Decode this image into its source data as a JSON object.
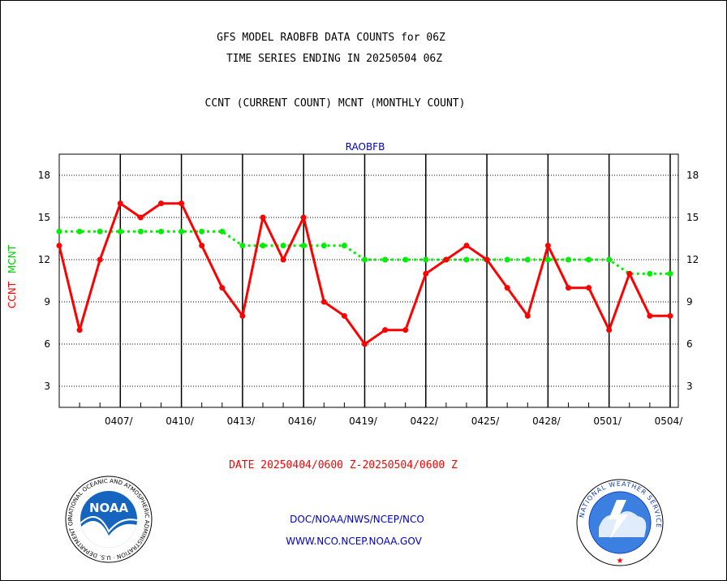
{
  "header": {
    "title_line1": "GFS MODEL RAOBFB DATA COUNTS for 06Z",
    "title_line2": "TIME SERIES ENDING IN 20250504 06Z",
    "subtitle": "CCNT (CURRENT COUNT) MCNT (MONTHLY COUNT)"
  },
  "footer": {
    "date_range": "DATE 20250404/0600 Z-20250504/0600 Z",
    "org_line": "DOC/NOAA/NWS/NCEP/NCO",
    "url_line": "WWW.NCO.NCEP.NOAA.GOV"
  },
  "logos": {
    "noaa_text": "NOAA",
    "noaa_ring_text": "NATIONAL OCEANIC AND ATMOSPHERIC ADMINISTRATION · U.S. DEPARTMENT OF COMMERCE",
    "nws_ring_text": "NATIONAL WEATHER SERVICE"
  },
  "colors": {
    "ccnt": "#ff0000",
    "mcnt": "#00ee00",
    "panel_label": "#0000cc",
    "axis": "#000000"
  },
  "chart_data": {
    "type": "line",
    "panel_label": "RAOBFB",
    "ylabel_ccnt": "CCNT",
    "ylabel_mcnt": "MCNT",
    "ylim": [
      1.5,
      19.5
    ],
    "yticks": [
      3,
      6,
      9,
      12,
      15,
      18
    ],
    "ytick_labels": [
      "3",
      "6",
      "9",
      "12",
      "15",
      "18"
    ],
    "xlim": [
      0,
      30.4
    ],
    "xticks": [
      3,
      6,
      9,
      12,
      15,
      18,
      21,
      24,
      27,
      30
    ],
    "xtick_labels": [
      "0407/",
      "0410/",
      "0413/",
      "0416/",
      "0419/",
      "0422/",
      "0425/",
      "0428/",
      "0501/",
      "0504/"
    ],
    "grid": true,
    "x": [
      0,
      1,
      2,
      3,
      4,
      5,
      6,
      7,
      8,
      9,
      10,
      11,
      12,
      13,
      14,
      15,
      16,
      17,
      18,
      19,
      20,
      21,
      22,
      23,
      24,
      25,
      26,
      27,
      28,
      29,
      30
    ],
    "series": [
      {
        "name": "CCNT",
        "color": "#ff0000",
        "style": "solid",
        "values": [
          13,
          7,
          12,
          16,
          15,
          16,
          16,
          13,
          10,
          8,
          15,
          12,
          15,
          9,
          8,
          6,
          7,
          7,
          11,
          12,
          13,
          12,
          10,
          8,
          13,
          10,
          10,
          7,
          11,
          8,
          8
        ]
      },
      {
        "name": "MCNT",
        "color": "#00ee00",
        "style": "dotted",
        "values": [
          14,
          14,
          14,
          14,
          14,
          14,
          14,
          14,
          14,
          13,
          13,
          13,
          13,
          13,
          13,
          12,
          12,
          12,
          12,
          12,
          12,
          12,
          12,
          12,
          12,
          12,
          12,
          12,
          11,
          11,
          11
        ]
      }
    ]
  }
}
